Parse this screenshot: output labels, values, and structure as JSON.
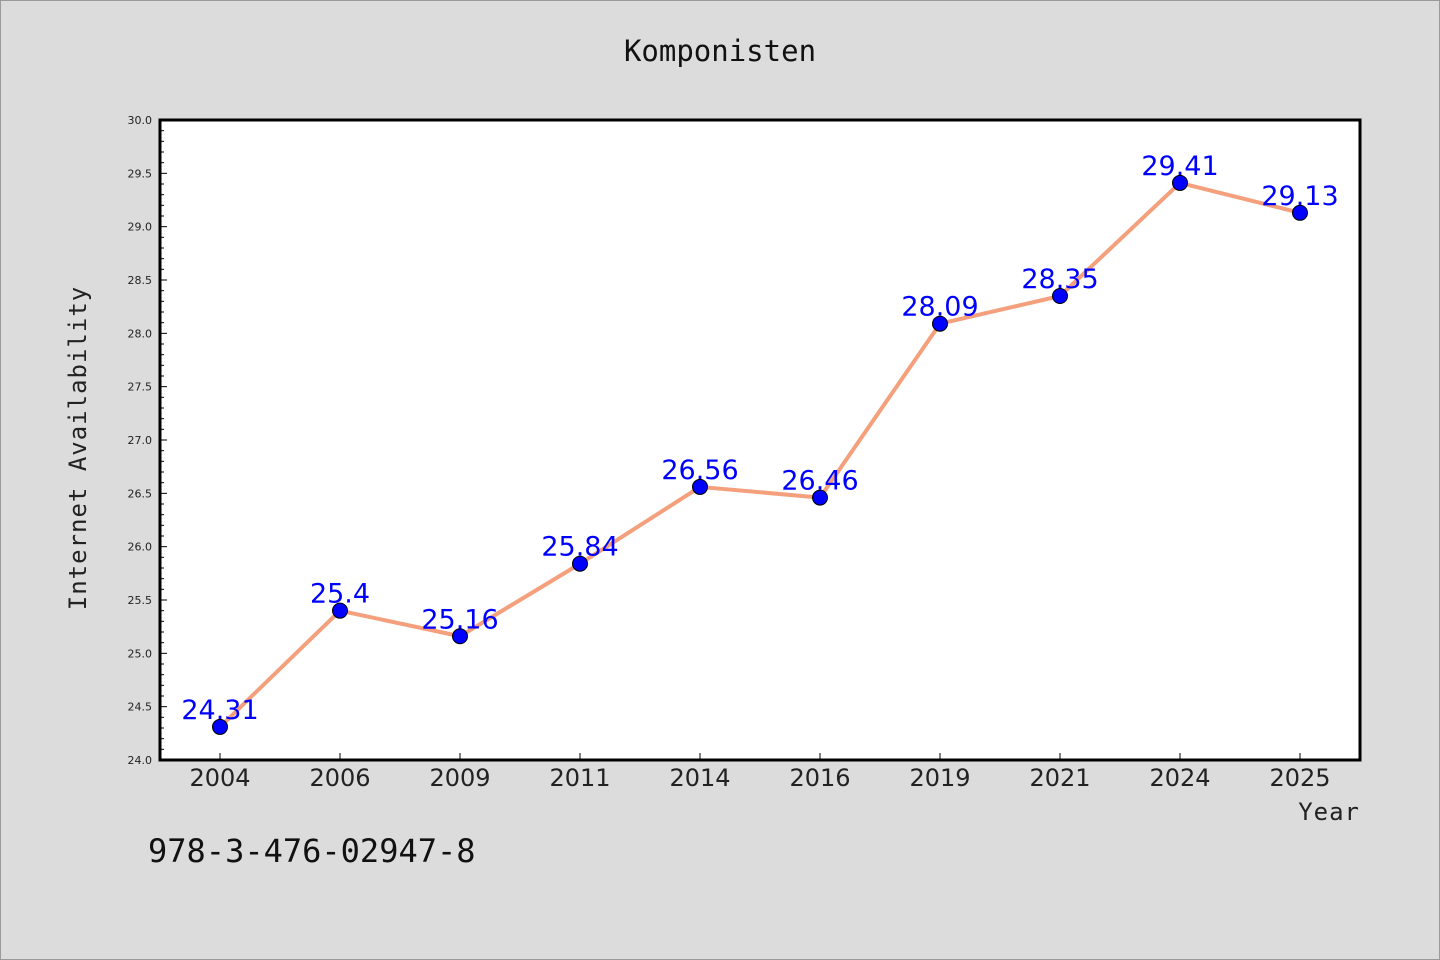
{
  "colors": {
    "background": "#dcdcdc",
    "plot_area": "#ffffff",
    "line": "#f4a07c",
    "marker": "#0000ff",
    "data_label": "#0000ff"
  },
  "isbn": "978-3-476-02947-8",
  "chart_data": {
    "type": "line",
    "title": "Komponisten",
    "xlabel": "Year",
    "ylabel": "Internet Availability",
    "categories": [
      "2004",
      "2006",
      "2009",
      "2011",
      "2014",
      "2016",
      "2019",
      "2021",
      "2024",
      "2025"
    ],
    "values": [
      24.31,
      25.4,
      25.16,
      25.84,
      26.56,
      26.46,
      28.09,
      28.35,
      29.41,
      29.13
    ],
    "data_labels": [
      "24.31",
      "25.4",
      "25.16",
      "25.84",
      "26.56",
      "26.46",
      "28.09",
      "28.35",
      "29.41",
      "29.13"
    ],
    "ylim": [
      24.0,
      30.0
    ],
    "y_ticks": [
      "24.0",
      "24.5",
      "25.0",
      "25.5",
      "26.0",
      "26.5",
      "27.0",
      "27.5",
      "28.0",
      "28.5",
      "29.0",
      "29.5",
      "30.0"
    ],
    "grid": false,
    "legend": "none"
  }
}
